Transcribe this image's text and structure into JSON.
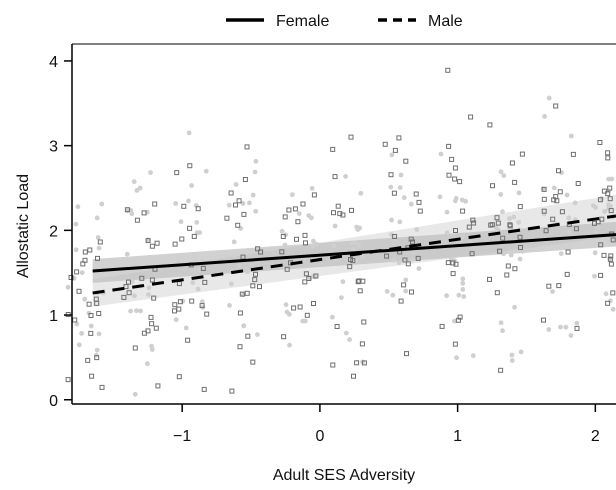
{
  "chart_data": {
    "type": "scatter",
    "xlabel": "Adult SES Adversity",
    "ylabel": "Allostatic Load",
    "xlim": [
      -1.8,
      2.15
    ],
    "ylim": [
      -0.05,
      4.2
    ],
    "x_ticks": [
      -1,
      0,
      1,
      2
    ],
    "x_tick_labels": [
      "−1",
      "0",
      "1",
      "2"
    ],
    "y_ticks": [
      0,
      1,
      2,
      3,
      4
    ],
    "y_tick_labels": [
      "0",
      "1",
      "2",
      "3",
      "4"
    ],
    "grid": false,
    "legend_position": "top",
    "x_levels": [
      -1.7,
      -1.3,
      -0.93,
      -0.55,
      -0.15,
      0.22,
      0.6,
      1.0,
      1.35,
      1.75,
      2.1
    ],
    "series": [
      {
        "name": "Female",
        "line_style": "solid",
        "marker": "filled-circle",
        "marker_color": "#cfcfcf",
        "fit": {
          "x": [
            -1.65,
            2.15
          ],
          "y": [
            1.52,
            1.95
          ]
        },
        "ci_lower": [
          1.38,
          1.81
        ],
        "ci_upper": [
          1.66,
          2.1
        ]
      },
      {
        "name": "Male",
        "line_style": "dashed",
        "marker": "open-square",
        "marker_color": "#6f6f6f",
        "fit": {
          "x": [
            -1.65,
            2.15
          ],
          "y": [
            1.26,
            2.17
          ]
        },
        "ci_lower": [
          1.1,
          1.93
        ],
        "ci_upper": [
          1.42,
          2.42
        ]
      }
    ]
  }
}
